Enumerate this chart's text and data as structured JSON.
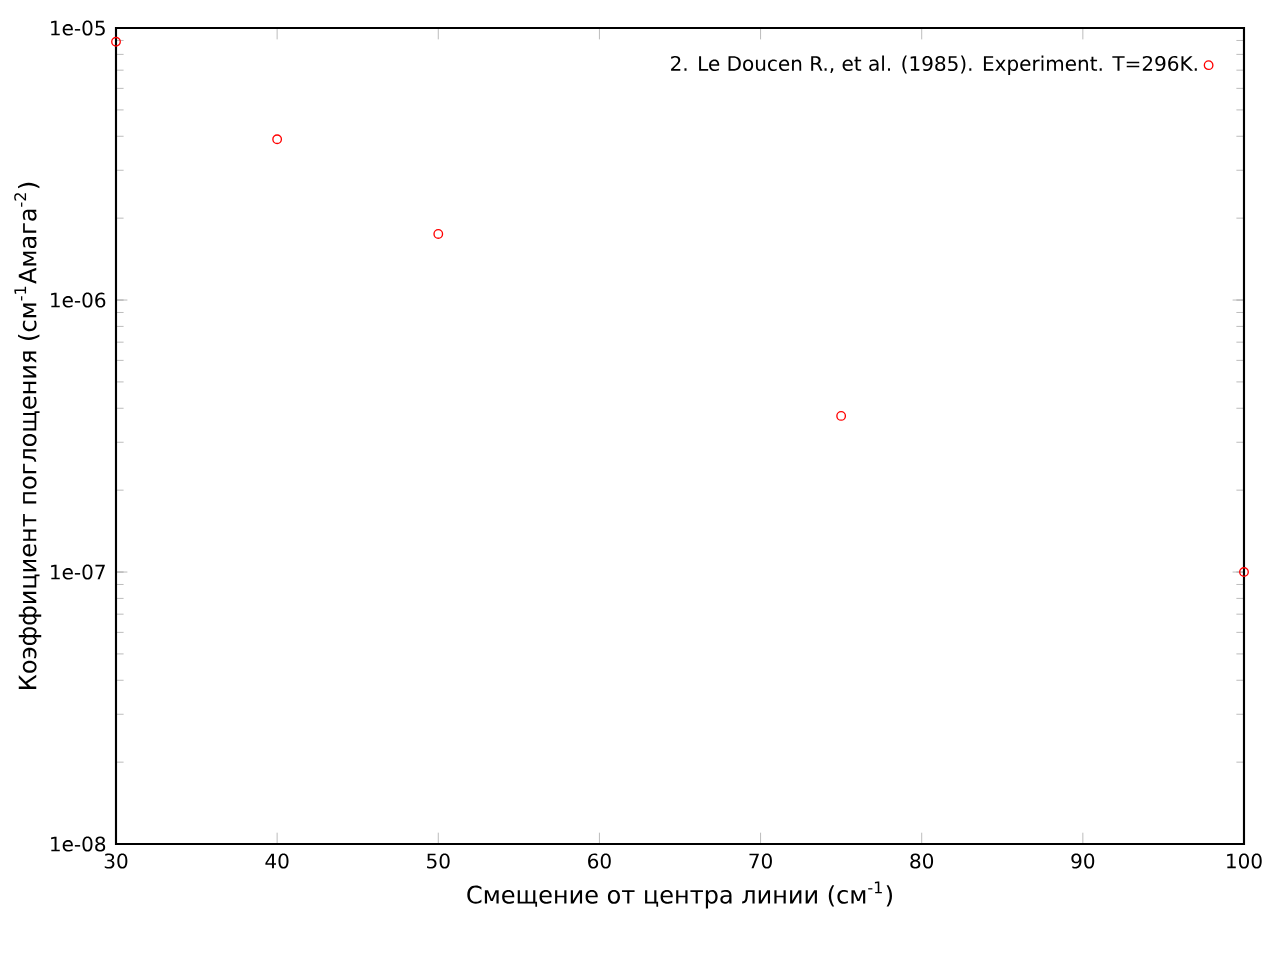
{
  "chart_data": {
    "type": "scatter",
    "xlabel": "Смещение от центра линии (см$^{-1}$)",
    "ylabel": "Коэффициент поглощения (см$^{-1}$Амага$^{-2}$)",
    "x": [
      30,
      40,
      50,
      75,
      100
    ],
    "series": [
      {
        "name": "2. Le Doucen R., et al. (1985). Experiment. T=296K.",
        "color": "#ff0000",
        "values": [
          8.9e-06,
          3.9e-06,
          1.75e-06,
          3.75e-07,
          1e-07
        ]
      }
    ],
    "log": "y",
    "xlim": [
      30,
      100
    ],
    "xticks": [
      30,
      40,
      50,
      60,
      70,
      80,
      90,
      100
    ],
    "ylim": [
      1e-08,
      1e-05
    ],
    "yticks": [
      {
        "value": 1e-08,
        "label": "1e-08"
      },
      {
        "value": 1e-07,
        "label": "1e-07"
      },
      {
        "value": 1e-06,
        "label": "1e-06"
      },
      {
        "value": 1e-05,
        "label": "1e-05"
      }
    ],
    "marker": "circle",
    "legend": "top right",
    "grid": false
  }
}
